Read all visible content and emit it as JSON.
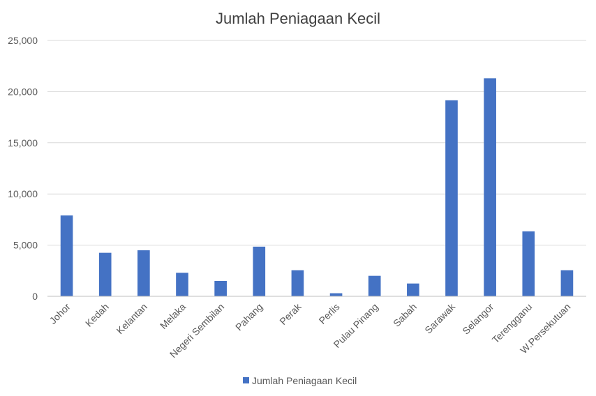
{
  "chart_data": {
    "type": "bar",
    "title": "Jumlah Peniagaan Kecil",
    "xlabel": "",
    "ylabel": "",
    "categories": [
      "Johor",
      "Kedah",
      "Kelantan",
      "Melaka",
      "Negeri Sembilan",
      "Pahang",
      "Perak",
      "Perlis",
      "Pulau Pinang",
      "Sabah",
      "Sarawak",
      "Selangor",
      "Terengganu",
      "W.Persekutuan"
    ],
    "series": [
      {
        "name": "Jumlah Peniagaan Kecil",
        "color": "#4472c4",
        "values": [
          7900,
          4250,
          4500,
          2300,
          1500,
          4850,
          2550,
          300,
          2000,
          1250,
          19150,
          21300,
          6350,
          2550
        ]
      }
    ],
    "ylim": [
      0,
      25000
    ],
    "yticks": [
      "0",
      "5,000",
      "10,000",
      "15,000",
      "20,000",
      "25,000"
    ],
    "ytick_values": [
      0,
      5000,
      10000,
      15000,
      20000,
      25000
    ],
    "grid": true,
    "legend": "bottom"
  }
}
